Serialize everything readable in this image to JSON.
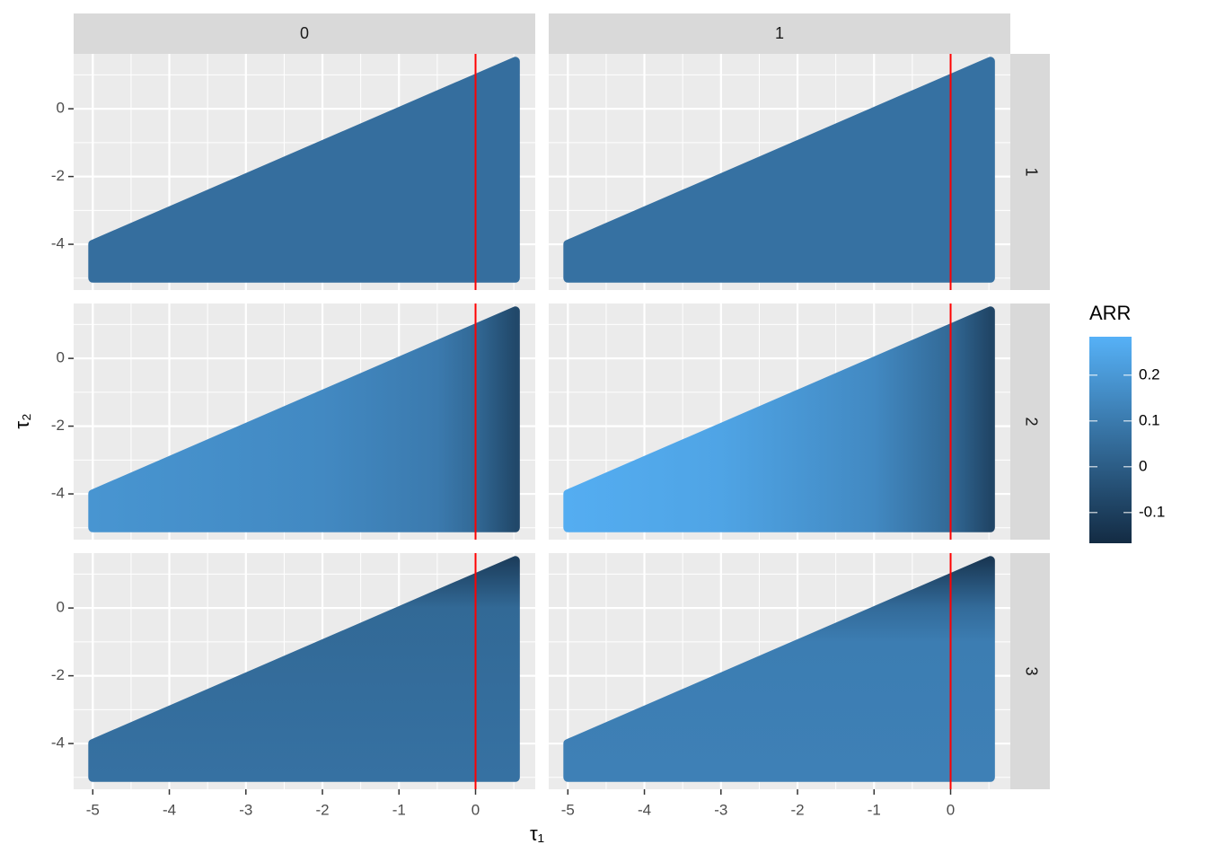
{
  "chart_data": {
    "type": "raster",
    "facet_cols": [
      "0",
      "1"
    ],
    "facet_rows": [
      "1",
      "2",
      "3"
    ],
    "xlabel": "τ₁",
    "ylabel": "τ₂",
    "xlim": [
      -5.25,
      0.78
    ],
    "ylim": [
      -5.35,
      1.62
    ],
    "xticks": [
      -5,
      -4,
      -3,
      -2,
      -1,
      0
    ],
    "yticks": [
      -4,
      -2,
      0
    ],
    "xminor": [
      -4.5,
      -3.5,
      -2.5,
      -1.5,
      -0.5,
      0.5
    ],
    "yminor": [
      -5,
      -3,
      -1,
      1
    ],
    "grid": true,
    "vline": {
      "x": 0,
      "color": "#FF0000"
    },
    "region": {
      "x": [
        -5,
        0.52,
        0.52,
        -5
      ],
      "y": [
        -5,
        -5,
        1.4,
        -4
      ]
    },
    "panels": [
      [
        {
          "gradient": "x",
          "positions": [
            -5
          ],
          "values": [
            0.06
          ]
        },
        {
          "gradient": "x",
          "positions": [
            -5
          ],
          "values": [
            0.07
          ]
        }
      ],
      [
        {
          "gradient": "x",
          "positions": [
            -5,
            -2,
            -0.5,
            0,
            0.52
          ],
          "values": [
            0.19,
            0.15,
            0.1,
            0.04,
            -0.07
          ]
        },
        {
          "gradient": "x",
          "positions": [
            -5,
            -3,
            -1,
            0,
            0.52
          ],
          "values": [
            0.27,
            0.24,
            0.15,
            0.04,
            -0.08
          ]
        }
      ],
      [
        {
          "gradient": "y",
          "positions": [
            -5,
            0,
            1.4
          ],
          "values": [
            0.07,
            0.04,
            -0.1
          ]
        },
        {
          "gradient": "y",
          "positions": [
            -5,
            -1,
            0,
            1.4
          ],
          "values": [
            0.12,
            0.11,
            0.05,
            -0.12
          ]
        }
      ]
    ],
    "colorbar": {
      "title": "ARR",
      "lim": [
        -0.167,
        0.284
      ],
      "ticks": [
        -0.1,
        0,
        0.1,
        0.2
      ],
      "low": "#132B43",
      "high": "#56B1F7"
    }
  }
}
